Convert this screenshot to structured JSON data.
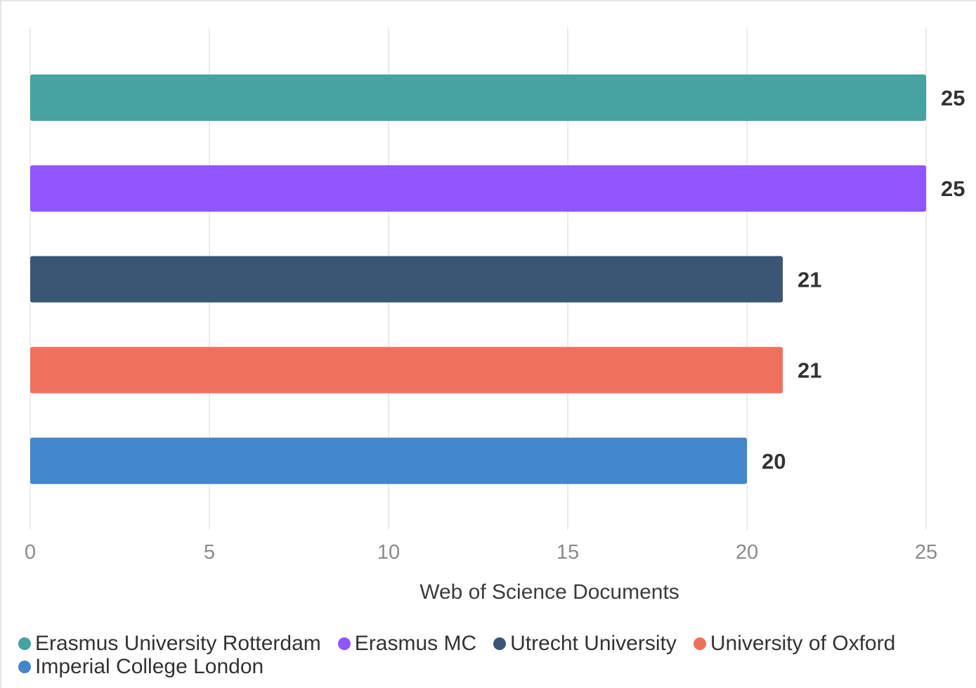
{
  "chart_data": {
    "type": "bar",
    "orientation": "horizontal",
    "categories": [
      "Erasmus University Rotterdam",
      "Erasmus MC",
      "Utrecht University",
      "University of Oxford",
      "Imperial College London"
    ],
    "values": [
      25,
      25,
      21,
      21,
      20
    ],
    "colors": [
      "#47a2a2",
      "#9055fd",
      "#3b5675",
      "#ef715d",
      "#4286cc"
    ],
    "xlabel": "Web of Science Documents",
    "xlim": [
      0,
      25
    ],
    "xticks": [
      0,
      5,
      10,
      15,
      20,
      25
    ],
    "grid": "vertical",
    "data_labels": [
      "25",
      "25",
      "21",
      "21",
      "20"
    ],
    "legend": {
      "position": "bottom-left",
      "entries": [
        "Erasmus University Rotterdam",
        "Erasmus MC",
        "Utrecht University",
        "University of Oxford",
        "Imperial College London"
      ]
    }
  }
}
